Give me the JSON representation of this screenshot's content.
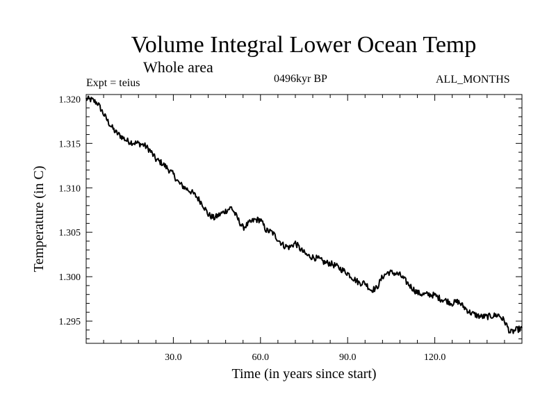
{
  "header": {
    "title": "Volume Integral Lower Ocean Temp",
    "subtitle": "Whole area",
    "experiment": "Expt = teius",
    "period": "0496kyr BP",
    "months": "ALL_MONTHS"
  },
  "chart_data": {
    "type": "line",
    "title": "Volume Integral Lower Ocean Temp",
    "subtitle": "Whole area",
    "xlabel": "Time (in years since start)",
    "ylabel": "Temperature (in C)",
    "xlim": [
      0,
      150
    ],
    "ylim": [
      1.2925,
      1.3205
    ],
    "xticks": [
      30,
      60,
      90,
      120
    ],
    "xtick_labels": [
      "30.0",
      "60.0",
      "90.0",
      "120.0"
    ],
    "yticks": [
      1.295,
      1.3,
      1.305,
      1.31,
      1.315,
      1.32
    ],
    "ytick_labels": [
      "1.295",
      "1.300",
      "1.305",
      "1.310",
      "1.315",
      "1.320"
    ],
    "grid": false,
    "series": [
      {
        "name": "Volume integral lower ocean temperature",
        "color": "#000000",
        "x": [
          0,
          2,
          4,
          6,
          8,
          10,
          12,
          14,
          16,
          18,
          20,
          22,
          24,
          26,
          28,
          30,
          32,
          34,
          36,
          38,
          40,
          42,
          44,
          46,
          48,
          50,
          52,
          54,
          56,
          58,
          60,
          62,
          64,
          66,
          68,
          70,
          72,
          74,
          76,
          78,
          80,
          82,
          84,
          86,
          88,
          90,
          92,
          94,
          96,
          98,
          100,
          102,
          104,
          106,
          108,
          110,
          112,
          114,
          116,
          118,
          120,
          122,
          124,
          126,
          128,
          130,
          132,
          134,
          136,
          138,
          140,
          142,
          144,
          146,
          148,
          150
        ],
        "values": [
          1.32,
          1.3199,
          1.3195,
          1.3183,
          1.3172,
          1.3163,
          1.3158,
          1.3153,
          1.3151,
          1.315,
          1.3148,
          1.3142,
          1.3132,
          1.3128,
          1.3122,
          1.3115,
          1.3105,
          1.31,
          1.3096,
          1.309,
          1.3082,
          1.307,
          1.3066,
          1.307,
          1.3074,
          1.3078,
          1.3066,
          1.3055,
          1.306,
          1.3064,
          1.3064,
          1.3052,
          1.305,
          1.3042,
          1.3035,
          1.3033,
          1.3038,
          1.303,
          1.3024,
          1.3022,
          1.302,
          1.3016,
          1.3015,
          1.3012,
          1.3008,
          1.3004,
          1.2998,
          1.2993,
          1.2993,
          1.2985,
          1.2987,
          1.3,
          1.3005,
          1.3004,
          1.3002,
          1.2995,
          1.2988,
          1.2982,
          1.298,
          1.298,
          1.2979,
          1.2975,
          1.2973,
          1.297,
          1.2972,
          1.2966,
          1.296,
          1.2957,
          1.2955,
          1.2955,
          1.2956,
          1.2957,
          1.295,
          1.2937,
          1.294,
          1.2942
        ]
      }
    ]
  }
}
